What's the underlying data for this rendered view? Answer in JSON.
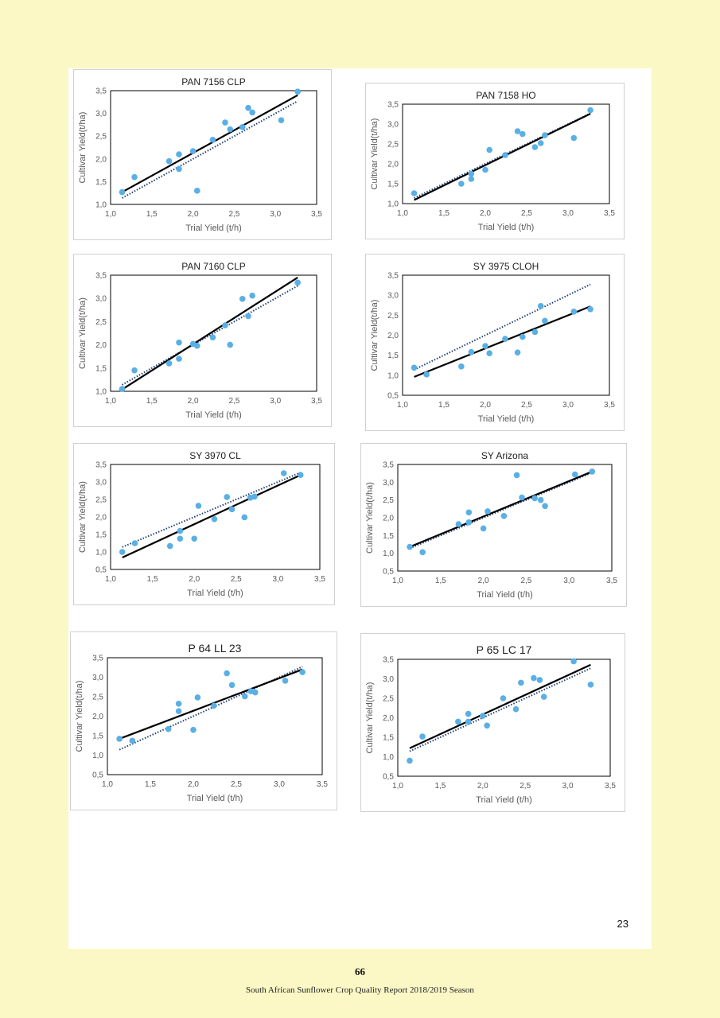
{
  "page": {
    "inner_page_number": "23",
    "footer_page_number": "66",
    "footer_text": "South African Sunflower Crop Quality Report 2018/2019 Season"
  },
  "colors": {
    "point": "#5aafe5",
    "fit_line": "#000000",
    "reference_line": "#1f3f77",
    "axis": "#000000",
    "label": "#595959",
    "page_background": "#fbf8c6"
  },
  "chart_data": [
    {
      "type": "scatter",
      "title": "PAN 7156 CLP",
      "xlabel": "Trial Yield (t/h)",
      "ylabel": "Cultivar Yield(t/ha)",
      "xlim": [
        1.0,
        3.5
      ],
      "ylim": [
        1.0,
        3.5
      ],
      "xticks": [
        "1,0",
        "1,5",
        "2,0",
        "2,5",
        "3,0",
        "3,5"
      ],
      "yticks": [
        "1,0",
        "1,5",
        "2,0",
        "2,5",
        "3,0",
        "3,5"
      ],
      "grid": false,
      "points": [
        [
          1.14,
          1.27
        ],
        [
          1.29,
          1.6
        ],
        [
          1.71,
          1.95
        ],
        [
          1.83,
          2.1
        ],
        [
          1.83,
          1.78
        ],
        [
          2.0,
          2.17
        ],
        [
          2.05,
          1.3
        ],
        [
          2.24,
          2.42
        ],
        [
          2.39,
          2.8
        ],
        [
          2.45,
          2.65
        ],
        [
          2.6,
          2.7
        ],
        [
          2.67,
          3.12
        ],
        [
          2.72,
          3.02
        ],
        [
          3.07,
          2.85
        ],
        [
          3.27,
          3.48
        ]
      ],
      "fit_line": [
        [
          1.14,
          1.27
        ],
        [
          3.27,
          3.4
        ]
      ],
      "reference_line": [
        [
          1.14,
          1.14
        ],
        [
          3.27,
          3.27
        ]
      ]
    },
    {
      "type": "scatter",
      "title": "PAN 7158 HO",
      "xlabel": "Trial Yield (t/h)",
      "ylabel": "Cultivar Yield(t/ha)",
      "xlim": [
        1.0,
        3.5
      ],
      "ylim": [
        1.0,
        3.5
      ],
      "xticks": [
        "1,0",
        "1,5",
        "2,0",
        "2,5",
        "3,0",
        "3,5"
      ],
      "yticks": [
        "1,0",
        "1,5",
        "2,0",
        "2,5",
        "3,0",
        "3,5"
      ],
      "grid": false,
      "points": [
        [
          1.14,
          1.26
        ],
        [
          1.71,
          1.5
        ],
        [
          1.83,
          1.62
        ],
        [
          1.83,
          1.75
        ],
        [
          2.0,
          1.85
        ],
        [
          2.05,
          2.35
        ],
        [
          2.24,
          2.22
        ],
        [
          2.39,
          2.82
        ],
        [
          2.45,
          2.75
        ],
        [
          2.6,
          2.42
        ],
        [
          2.67,
          2.52
        ],
        [
          2.72,
          2.72
        ],
        [
          3.07,
          2.65
        ],
        [
          3.27,
          3.35
        ]
      ],
      "fit_line": [
        [
          1.14,
          1.09
        ],
        [
          3.27,
          3.26
        ]
      ],
      "reference_line": [
        [
          1.14,
          1.14
        ],
        [
          3.27,
          3.27
        ]
      ]
    },
    {
      "type": "scatter",
      "title": "PAN 7160 CLP",
      "xlabel": "Trial Yield (t/h)",
      "ylabel": "Cultivar Yield(t/ha)",
      "xlim": [
        1.0,
        3.5
      ],
      "ylim": [
        1.0,
        3.5
      ],
      "xticks": [
        "1,0",
        "1,5",
        "2,0",
        "2,5",
        "3,0",
        "3,5"
      ],
      "yticks": [
        "1,0",
        "1,5",
        "2,0",
        "2,5",
        "3,0",
        "3,5"
      ],
      "grid": false,
      "points": [
        [
          1.14,
          1.05
        ],
        [
          1.29,
          1.45
        ],
        [
          1.71,
          1.6
        ],
        [
          1.83,
          2.05
        ],
        [
          1.83,
          1.7
        ],
        [
          2.0,
          2.02
        ],
        [
          2.05,
          1.98
        ],
        [
          2.24,
          2.16
        ],
        [
          2.39,
          2.42
        ],
        [
          2.45,
          2.0
        ],
        [
          2.6,
          2.99
        ],
        [
          2.67,
          2.62
        ],
        [
          2.72,
          3.06
        ],
        [
          3.27,
          3.34
        ]
      ],
      "fit_line": [
        [
          1.14,
          1.04
        ],
        [
          3.27,
          3.45
        ]
      ],
      "reference_line": [
        [
          1.14,
          1.14
        ],
        [
          3.27,
          3.27
        ]
      ]
    },
    {
      "type": "scatter",
      "title": "SY 3975 CLOH",
      "xlabel": "Trial Yield (t/h)",
      "ylabel": "Cultivar Yield(t/ha)",
      "xlim": [
        1.0,
        3.5
      ],
      "ylim": [
        0.5,
        3.5
      ],
      "xticks": [
        "1,0",
        "1,5",
        "2,0",
        "2,5",
        "3,0",
        "3,5"
      ],
      "yticks": [
        "0,5",
        "1,0",
        "1,5",
        "2,0",
        "2,5",
        "3,0",
        "3,5"
      ],
      "grid": false,
      "points": [
        [
          1.14,
          1.19
        ],
        [
          1.29,
          1.02
        ],
        [
          1.71,
          1.22
        ],
        [
          1.83,
          1.58
        ],
        [
          2.0,
          1.73
        ],
        [
          2.05,
          1.55
        ],
        [
          2.24,
          1.91
        ],
        [
          2.39,
          1.57
        ],
        [
          2.45,
          1.96
        ],
        [
          2.6,
          2.08
        ],
        [
          2.67,
          2.73
        ],
        [
          2.72,
          2.36
        ],
        [
          3.07,
          2.59
        ],
        [
          3.27,
          2.65
        ]
      ],
      "fit_line": [
        [
          1.14,
          0.96
        ],
        [
          3.27,
          2.72
        ]
      ],
      "reference_line": [
        [
          1.14,
          1.14
        ],
        [
          3.27,
          3.27
        ]
      ]
    },
    {
      "type": "scatter",
      "title": "SY 3970 CL",
      "xlabel": "Trial Yield (t/h)",
      "ylabel": "Cultivar Yield(t/ha)",
      "xlim": [
        1.0,
        3.5
      ],
      "ylim": [
        0.5,
        3.5
      ],
      "xticks": [
        "1,0",
        "1,5",
        "2,0",
        "2,5",
        "3,0",
        "3,5"
      ],
      "yticks": [
        "0,5",
        "1,0",
        "1,5",
        "2,0",
        "2,5",
        "3,0",
        "3,5"
      ],
      "grid": false,
      "points": [
        [
          1.14,
          1.0
        ],
        [
          1.29,
          1.25
        ],
        [
          1.71,
          1.17
        ],
        [
          1.83,
          1.6
        ],
        [
          1.83,
          1.38
        ],
        [
          2.0,
          1.38
        ],
        [
          2.05,
          2.32
        ],
        [
          2.24,
          1.94
        ],
        [
          2.39,
          2.57
        ],
        [
          2.45,
          2.22
        ],
        [
          2.6,
          1.99
        ],
        [
          2.67,
          2.55
        ],
        [
          2.72,
          2.58
        ],
        [
          3.07,
          3.25
        ],
        [
          3.27,
          3.2
        ]
      ],
      "fit_line": [
        [
          1.14,
          0.84
        ],
        [
          3.27,
          3.2
        ]
      ],
      "reference_line": [
        [
          1.14,
          1.14
        ],
        [
          3.27,
          3.27
        ]
      ]
    },
    {
      "type": "scatter",
      "title": "SY Arizona",
      "xlabel": "Trial Yield (t/h)",
      "ylabel": "Cultivar Yield(t/ha)",
      "xlim": [
        1.0,
        3.5
      ],
      "ylim": [
        0.5,
        3.5
      ],
      "xticks": [
        "1,0",
        "1,5",
        "2,0",
        "2,5",
        "3,0",
        "3,5"
      ],
      "yticks": [
        "0,5",
        "1,0",
        "1,5",
        "2,0",
        "2,5",
        "3,0",
        "3,5"
      ],
      "grid": false,
      "points": [
        [
          1.14,
          1.18
        ],
        [
          1.29,
          1.03
        ],
        [
          1.71,
          1.82
        ],
        [
          1.83,
          2.15
        ],
        [
          1.83,
          1.87
        ],
        [
          2.0,
          1.7
        ],
        [
          2.05,
          2.18
        ],
        [
          2.24,
          2.05
        ],
        [
          2.39,
          3.2
        ],
        [
          2.45,
          2.57
        ],
        [
          2.6,
          2.55
        ],
        [
          2.67,
          2.5
        ],
        [
          2.72,
          2.33
        ],
        [
          3.07,
          3.22
        ],
        [
          3.27,
          3.3
        ]
      ],
      "fit_line": [
        [
          1.14,
          1.18
        ],
        [
          3.27,
          3.3
        ]
      ],
      "reference_line": [
        [
          1.14,
          1.14
        ],
        [
          3.27,
          3.27
        ]
      ]
    },
    {
      "type": "scatter",
      "title": "P 64 LL 23",
      "xlabel": "Trial Yield (t/h)",
      "ylabel": "Cultivar Yield(t/ha)",
      "xlim": [
        1.0,
        3.5
      ],
      "ylim": [
        0.5,
        3.5
      ],
      "xticks": [
        "1,0",
        "1,5",
        "2,0",
        "2,5",
        "3,0",
        "3,5"
      ],
      "yticks": [
        "0,5",
        "1,0",
        "1,5",
        "2,0",
        "2,5",
        "3,0",
        "3,5"
      ],
      "grid": false,
      "points": [
        [
          1.14,
          1.42
        ],
        [
          1.29,
          1.37
        ],
        [
          1.71,
          1.67
        ],
        [
          1.83,
          2.32
        ],
        [
          1.83,
          2.13
        ],
        [
          2.0,
          1.65
        ],
        [
          2.05,
          2.48
        ],
        [
          2.24,
          2.27
        ],
        [
          2.39,
          3.1
        ],
        [
          2.45,
          2.8
        ],
        [
          2.6,
          2.51
        ],
        [
          2.67,
          2.64
        ],
        [
          2.72,
          2.61
        ],
        [
          3.07,
          2.91
        ],
        [
          3.27,
          3.13
        ]
      ],
      "fit_line": [
        [
          1.14,
          1.42
        ],
        [
          3.27,
          3.2
        ]
      ],
      "reference_line": [
        [
          1.14,
          1.14
        ],
        [
          3.27,
          3.27
        ]
      ]
    },
    {
      "type": "scatter",
      "title": "P 65 LC 17",
      "xlabel": "Trial Yield (t/h)",
      "ylabel": "Cultivar Yield(t/ha)",
      "xlim": [
        1.0,
        3.5
      ],
      "ylim": [
        0.5,
        3.5
      ],
      "xticks": [
        "1,0",
        "1,5",
        "2,0",
        "2,5",
        "3,0",
        "3,5"
      ],
      "yticks": [
        "0,5",
        "1,0",
        "1,5",
        "2,0",
        "2,5",
        "3,0",
        "3,5"
      ],
      "grid": false,
      "points": [
        [
          1.14,
          0.9
        ],
        [
          1.29,
          1.52
        ],
        [
          1.71,
          1.9
        ],
        [
          1.83,
          2.1
        ],
        [
          1.83,
          1.9
        ],
        [
          2.0,
          2.05
        ],
        [
          2.05,
          1.8
        ],
        [
          2.24,
          2.5
        ],
        [
          2.39,
          2.22
        ],
        [
          2.45,
          2.9
        ],
        [
          2.6,
          3.02
        ],
        [
          2.67,
          2.97
        ],
        [
          2.72,
          2.54
        ],
        [
          3.07,
          3.45
        ],
        [
          3.27,
          2.85
        ]
      ],
      "fit_line": [
        [
          1.14,
          1.22
        ],
        [
          3.27,
          3.36
        ]
      ],
      "reference_line": [
        [
          1.14,
          1.14
        ],
        [
          3.27,
          3.27
        ]
      ]
    }
  ]
}
